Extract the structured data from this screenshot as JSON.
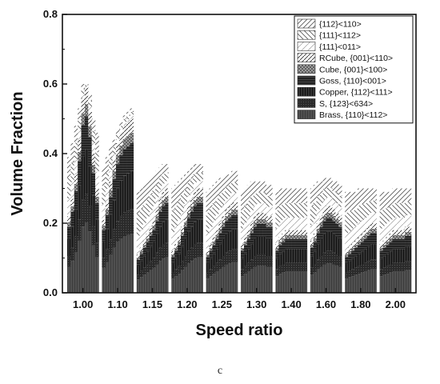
{
  "chart_data": {
    "type": "bar",
    "stacked": true,
    "title": "",
    "xlabel": "Speed ratio",
    "ylabel": "Volume Fraction",
    "ylim": [
      0,
      0.8
    ],
    "yticks": [
      "0.0",
      "0.2",
      "0.4",
      "0.6",
      "0.8"
    ],
    "categories": [
      "1.00",
      "1.10",
      "1.15",
      "1.20",
      "1.25",
      "1.30",
      "1.40",
      "1.60",
      "1.80",
      "2.00"
    ],
    "legend_position": "top-right",
    "legend": [
      "{112}<110>",
      "{111}<112>",
      "{111}<011>",
      "RCube, {001}<110>",
      "Cube, {001}<100>",
      "Goss, {110}<001>",
      "Copper, {112}<111>",
      "S, {123}<634>",
      "Brass, {110}<112>"
    ],
    "groups": [
      {
        "speed_ratio": "1.00",
        "lower_total": [
          0.22,
          0.27,
          0.34,
          0.44,
          0.56,
          0.59,
          0.52,
          0.4,
          0.3
        ],
        "upper_total": [
          0.39,
          0.43,
          0.48,
          0.53,
          0.6,
          0.6,
          0.57,
          0.5,
          0.46
        ]
      },
      {
        "speed_ratio": "1.10",
        "lower_total": [
          0.21,
          0.26,
          0.32,
          0.38,
          0.43,
          0.46,
          0.48,
          0.49,
          0.5
        ],
        "upper_total": [
          0.36,
          0.39,
          0.42,
          0.44,
          0.47,
          0.49,
          0.51,
          0.52,
          0.53
        ]
      },
      {
        "speed_ratio": "1.15",
        "lower_total": [
          0.11,
          0.13,
          0.15,
          0.17,
          0.19,
          0.21,
          0.24,
          0.27,
          0.29,
          0.3
        ],
        "upper_total": [
          0.29,
          0.3,
          0.31,
          0.32,
          0.33,
          0.34,
          0.35,
          0.36,
          0.37,
          0.37
        ]
      },
      {
        "speed_ratio": "1.20",
        "lower_total": [
          0.12,
          0.14,
          0.16,
          0.19,
          0.22,
          0.25,
          0.27,
          0.29,
          0.3,
          0.3
        ],
        "upper_total": [
          0.3,
          0.31,
          0.32,
          0.33,
          0.34,
          0.35,
          0.36,
          0.37,
          0.37,
          0.37
        ]
      },
      {
        "speed_ratio": "1.25",
        "lower_total": [
          0.12,
          0.14,
          0.16,
          0.18,
          0.2,
          0.22,
          0.24,
          0.25,
          0.26,
          0.26
        ],
        "upper_total": [
          0.29,
          0.3,
          0.31,
          0.32,
          0.33,
          0.33,
          0.34,
          0.34,
          0.35,
          0.35
        ]
      },
      {
        "speed_ratio": "1.30",
        "lower_total": [
          0.14,
          0.16,
          0.18,
          0.2,
          0.22,
          0.23,
          0.23,
          0.23,
          0.22,
          0.22
        ],
        "upper_total": [
          0.29,
          0.3,
          0.31,
          0.32,
          0.32,
          0.32,
          0.32,
          0.32,
          0.31,
          0.31
        ]
      },
      {
        "speed_ratio": "1.40",
        "lower_total": [
          0.14,
          0.16,
          0.17,
          0.18,
          0.18,
          0.18,
          0.18,
          0.18,
          0.18,
          0.18
        ],
        "upper_total": [
          0.29,
          0.3,
          0.3,
          0.3,
          0.3,
          0.3,
          0.3,
          0.3,
          0.3,
          0.3
        ]
      },
      {
        "speed_ratio": "1.60",
        "lower_total": [
          0.15,
          0.17,
          0.2,
          0.22,
          0.24,
          0.25,
          0.25,
          0.24,
          0.23,
          0.22
        ],
        "upper_total": [
          0.3,
          0.31,
          0.32,
          0.32,
          0.33,
          0.33,
          0.33,
          0.32,
          0.32,
          0.31
        ]
      },
      {
        "speed_ratio": "1.80",
        "lower_total": [
          0.12,
          0.13,
          0.14,
          0.15,
          0.16,
          0.17,
          0.18,
          0.19,
          0.2,
          0.2
        ],
        "upper_total": [
          0.29,
          0.29,
          0.29,
          0.29,
          0.3,
          0.3,
          0.3,
          0.3,
          0.3,
          0.3
        ]
      },
      {
        "speed_ratio": "2.00",
        "lower_total": [
          0.14,
          0.15,
          0.16,
          0.17,
          0.18,
          0.18,
          0.18,
          0.18,
          0.19,
          0.19
        ],
        "upper_total": [
          0.29,
          0.29,
          0.29,
          0.29,
          0.3,
          0.3,
          0.3,
          0.3,
          0.3,
          0.3
        ]
      }
    ],
    "notes_on_layers": "lower_total = cumulative top of Brass+S+Copper+Goss+Cube+RCube (dark hatched layers); upper_total = cumulative top including {111}<011>, {111}<112>, {112}<110> (light hatched layers)"
  },
  "caption": "c"
}
